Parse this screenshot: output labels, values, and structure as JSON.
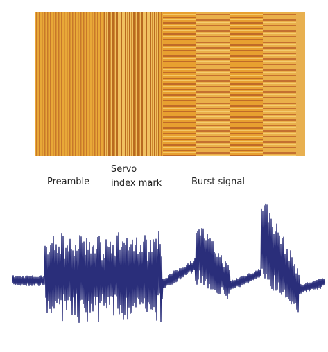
{
  "labels": {
    "preamble": "Preamble",
    "servo_line1": "Servo",
    "servo_line2": "index mark",
    "burst": "Burst signal"
  }
}
